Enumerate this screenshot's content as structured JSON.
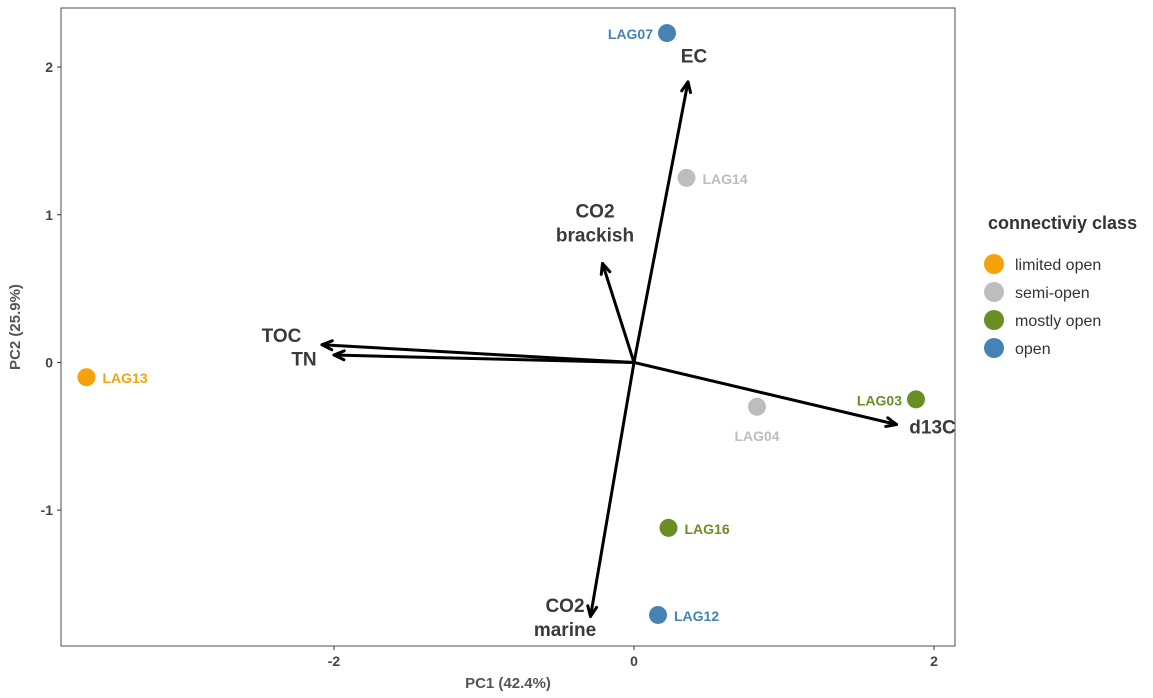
{
  "chart_data": {
    "type": "scatter",
    "subtype": "pca-biplot",
    "xlabel": "PC1 (42.4%)",
    "ylabel": "PC2 (25.9%)",
    "xlim": [
      -3.82,
      2.14
    ],
    "ylim": [
      -1.92,
      2.4
    ],
    "x_ticks": [
      -2,
      0,
      2
    ],
    "y_ticks": [
      -1,
      0,
      1,
      2
    ],
    "x_tick_labels": [
      "-2",
      "0",
      "2"
    ],
    "y_tick_labels": [
      "-1",
      "0",
      "1",
      "2"
    ],
    "grid": false,
    "legend": {
      "title": "connectiviy class",
      "position": "right",
      "entries": [
        {
          "label": "limited open",
          "color": "#F5A30A"
        },
        {
          "label": "semi-open",
          "color": "#BDBDBD"
        },
        {
          "label": "mostly open",
          "color": "#6B8E23"
        },
        {
          "label": "open",
          "color": "#4682B4"
        }
      ]
    },
    "points": [
      {
        "label": "LAG13",
        "x": -3.65,
        "y": -0.1,
        "class": "limited open",
        "label_side": "right"
      },
      {
        "label": "LAG07",
        "x": 0.22,
        "y": 2.23,
        "class": "open",
        "label_side": "left"
      },
      {
        "label": "LAG14",
        "x": 0.35,
        "y": 1.25,
        "class": "semi-open",
        "label_side": "right"
      },
      {
        "label": "LAG03",
        "x": 1.88,
        "y": -0.25,
        "class": "mostly open",
        "label_side": "left"
      },
      {
        "label": "LAG04",
        "x": 0.82,
        "y": -0.3,
        "class": "semi-open",
        "label_side": "below"
      },
      {
        "label": "LAG16",
        "x": 0.23,
        "y": -1.12,
        "class": "mostly open",
        "label_side": "right"
      },
      {
        "label": "LAG12",
        "x": 0.16,
        "y": -1.71,
        "class": "open",
        "label_side": "right"
      }
    ],
    "loadings": [
      {
        "label": [
          "EC"
        ],
        "x": 0.36,
        "y": 1.9,
        "label_x": 0.4,
        "label_y": 2.03
      },
      {
        "label": [
          "CO2",
          "brackish"
        ],
        "x": -0.21,
        "y": 0.67,
        "label_x": -0.26,
        "label_y": 0.98
      },
      {
        "label": [
          "TOC"
        ],
        "x": -2.08,
        "y": 0.12,
        "label_x": -2.35,
        "label_y": 0.14
      },
      {
        "label": [
          "TN"
        ],
        "x": -2.0,
        "y": 0.05,
        "label_x": -2.2,
        "label_y": -0.02
      },
      {
        "label": [
          "d13C"
        ],
        "x": 1.75,
        "y": -0.42,
        "label_x": 1.99,
        "label_y": -0.48
      },
      {
        "label": [
          "CO2",
          "marine"
        ],
        "x": -0.29,
        "y": -1.72,
        "label_x": -0.46,
        "label_y": -1.69
      }
    ]
  }
}
